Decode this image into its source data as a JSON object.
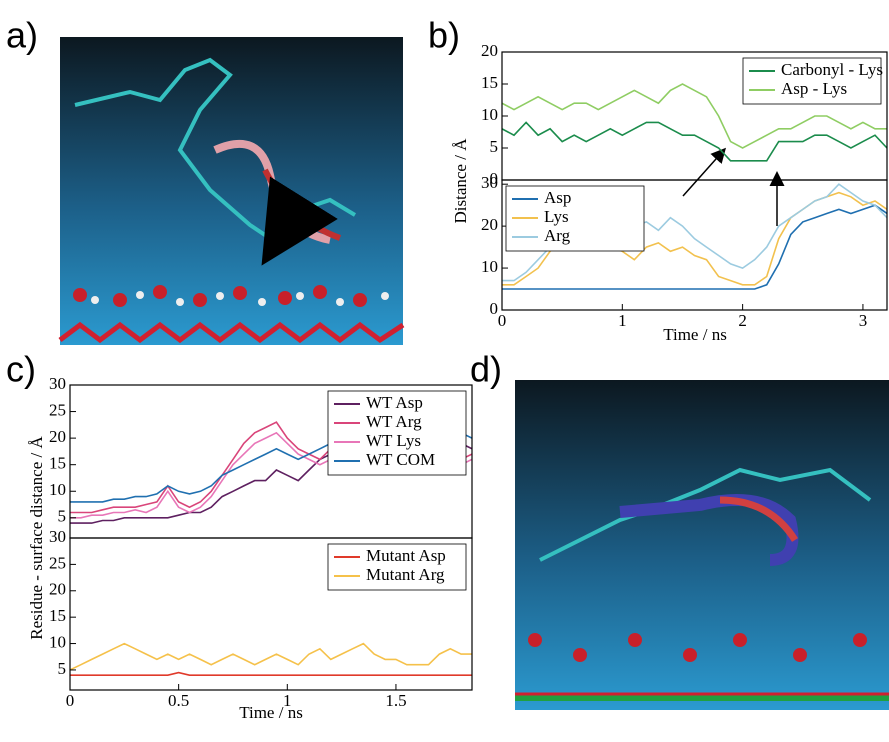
{
  "panels": {
    "labels": [
      "a)",
      "b)",
      "c)",
      "d)"
    ]
  },
  "chart_data": [
    {
      "type": "line",
      "legend": "upper right",
      "ylabel": "Distance / Å",
      "xlim": [
        0,
        3.2
      ],
      "ylim": [
        0,
        20
      ],
      "yticks": [
        0,
        5,
        10,
        15,
        20
      ],
      "x": [
        0,
        0.1,
        0.2,
        0.3,
        0.4,
        0.5,
        0.6,
        0.7,
        0.8,
        0.9,
        1,
        1.1,
        1.2,
        1.3,
        1.4,
        1.5,
        1.6,
        1.7,
        1.8,
        1.9,
        2,
        2.1,
        2.2,
        2.3,
        2.4,
        2.5,
        2.6,
        2.7,
        2.8,
        2.9,
        3,
        3.1,
        3.2
      ],
      "series": [
        {
          "name": "Carbonyl - Lys",
          "color": "#1b8c4c",
          "values": [
            8,
            7,
            9,
            7,
            8,
            6,
            7,
            6,
            7,
            8,
            7,
            8,
            9,
            9,
            8,
            7,
            7,
            6,
            5,
            3,
            3,
            3,
            3,
            6,
            6,
            6,
            7,
            7,
            6,
            5,
            6,
            7,
            5
          ]
        },
        {
          "name": "Asp - Lys",
          "color": "#8fcd63",
          "values": [
            12,
            11,
            12,
            13,
            12,
            11,
            12,
            12,
            11,
            12,
            13,
            14,
            13,
            12,
            14,
            15,
            14,
            13,
            10,
            6,
            5,
            6,
            7,
            8,
            8,
            9,
            10,
            10,
            9,
            8,
            9,
            8,
            8
          ]
        }
      ]
    },
    {
      "type": "line",
      "legend": "upper left",
      "xlabel": "Time / ns",
      "xlim": [
        0,
        3.2
      ],
      "xticks": [
        0,
        1,
        2,
        3
      ],
      "ylim": [
        0,
        31
      ],
      "yticks": [
        0,
        10,
        20,
        30
      ],
      "x": [
        0,
        0.1,
        0.2,
        0.3,
        0.4,
        0.5,
        0.6,
        0.7,
        0.8,
        0.9,
        1,
        1.1,
        1.2,
        1.3,
        1.4,
        1.5,
        1.6,
        1.7,
        1.8,
        1.9,
        2,
        2.1,
        2.2,
        2.3,
        2.4,
        2.5,
        2.6,
        2.7,
        2.8,
        2.9,
        3,
        3.1,
        3.2
      ],
      "series": [
        {
          "name": "Asp",
          "color": "#1f6fb0",
          "values": [
            5,
            5,
            5,
            5,
            5,
            5,
            5,
            5,
            5,
            5,
            5,
            5,
            5,
            5,
            5,
            5,
            5,
            5,
            5,
            5,
            5,
            5,
            6,
            11,
            18,
            21,
            22,
            23,
            24,
            23,
            24,
            25,
            23
          ]
        },
        {
          "name": "Lys",
          "color": "#f2c14e",
          "values": [
            6,
            6,
            8,
            10,
            14,
            17,
            16,
            15,
            16,
            15,
            14,
            12,
            15,
            16,
            14,
            15,
            13,
            12,
            8,
            7,
            6,
            6,
            8,
            17,
            22,
            24,
            26,
            27,
            28,
            27,
            25,
            26,
            24
          ]
        },
        {
          "name": "Arg",
          "color": "#9ccbe0",
          "values": [
            7,
            7,
            9,
            12,
            15,
            16,
            17,
            20,
            22,
            21,
            19,
            20,
            21,
            19,
            22,
            20,
            17,
            15,
            13,
            11,
            10,
            12,
            15,
            20,
            22,
            24,
            26,
            27,
            30,
            28,
            26,
            25,
            22
          ]
        }
      ]
    },
    {
      "type": "line",
      "legend": "upper right",
      "ylabel": "Residue - surface distance / Å",
      "xlim": [
        0,
        1.85
      ],
      "ylim": [
        1.2,
        30
      ],
      "yticks": [
        5,
        10,
        15,
        20,
        25,
        30
      ],
      "x": [
        0,
        0.05,
        0.1,
        0.15,
        0.2,
        0.25,
        0.3,
        0.35,
        0.4,
        0.45,
        0.5,
        0.55,
        0.6,
        0.65,
        0.7,
        0.75,
        0.8,
        0.85,
        0.9,
        0.95,
        1,
        1.05,
        1.1,
        1.15,
        1.2,
        1.25,
        1.3,
        1.35,
        1.4,
        1.45,
        1.5,
        1.55,
        1.6,
        1.65,
        1.7,
        1.75,
        1.8,
        1.85
      ],
      "series": [
        {
          "name": "WT Asp",
          "color": "#5e2060",
          "values": [
            4,
            4,
            4,
            4.5,
            4.5,
            5,
            5,
            5,
            5,
            5,
            5.5,
            6,
            6,
            7,
            9,
            10,
            11,
            12,
            12,
            14,
            13,
            12,
            14,
            16,
            17,
            19,
            20,
            21,
            22,
            20,
            18,
            19,
            18,
            19,
            19,
            20,
            19,
            18
          ]
        },
        {
          "name": "WT Arg",
          "color": "#d9457a",
          "values": [
            6,
            6,
            6,
            6.5,
            7,
            7,
            7,
            7.5,
            8,
            11,
            8,
            7,
            8,
            10,
            13,
            16,
            19,
            21,
            22,
            23,
            20,
            18,
            17,
            16,
            18,
            19,
            20,
            21,
            21,
            19,
            18,
            18,
            17,
            18,
            18,
            17,
            16,
            17
          ]
        },
        {
          "name": "WT Lys",
          "color": "#e876b8",
          "values": [
            5,
            5,
            5.5,
            5.5,
            6,
            6,
            6.5,
            6,
            7,
            10,
            7,
            6,
            7,
            9,
            12,
            15,
            17,
            19,
            20,
            21,
            19,
            17,
            16,
            15,
            16,
            17,
            18,
            19,
            20,
            20,
            19,
            18,
            17,
            16,
            17,
            16,
            15,
            16
          ]
        },
        {
          "name": "WT COM",
          "color": "#2070b0",
          "values": [
            8,
            8,
            8,
            8,
            8.5,
            8.5,
            9,
            9,
            9.5,
            11,
            10,
            9.5,
            10,
            11,
            13,
            14,
            15,
            16,
            17,
            18,
            17,
            16,
            17,
            18,
            19,
            20,
            21,
            22,
            22,
            24,
            22,
            21,
            20,
            20,
            21,
            22,
            21,
            20
          ]
        }
      ]
    },
    {
      "type": "line",
      "legend": "upper right",
      "xlabel": "Time / ns",
      "xlim": [
        0,
        1.85
      ],
      "xticks": [
        0,
        0.5,
        1,
        1.5
      ],
      "ylim": [
        1.2,
        30
      ],
      "yticks": [
        5,
        10,
        15,
        20,
        25,
        30
      ],
      "x": [
        0,
        0.05,
        0.1,
        0.15,
        0.2,
        0.25,
        0.3,
        0.35,
        0.4,
        0.45,
        0.5,
        0.55,
        0.6,
        0.65,
        0.7,
        0.75,
        0.8,
        0.85,
        0.9,
        0.95,
        1,
        1.05,
        1.1,
        1.15,
        1.2,
        1.25,
        1.3,
        1.35,
        1.4,
        1.45,
        1.5,
        1.55,
        1.6,
        1.65,
        1.7,
        1.75,
        1.8,
        1.85
      ],
      "series": [
        {
          "name": "Mutant Asp",
          "color": "#e03a2a",
          "values": [
            4,
            4,
            4,
            4,
            4,
            4,
            4,
            4,
            4,
            4,
            4.5,
            4,
            4,
            4,
            4,
            4,
            4,
            4,
            4,
            4,
            4,
            4,
            4,
            4,
            4,
            4,
            4,
            4,
            4,
            4,
            4,
            4,
            4,
            4,
            4,
            4,
            4,
            4
          ]
        },
        {
          "name": "Mutant Arg",
          "color": "#f5c14a",
          "values": [
            5,
            6,
            7,
            8,
            9,
            10,
            9,
            8,
            7,
            8,
            7,
            8,
            7,
            6,
            7,
            8,
            7,
            6,
            7,
            8,
            7,
            6,
            8,
            9,
            7,
            8,
            9,
            10,
            8,
            7,
            7,
            6,
            6,
            6,
            8,
            9,
            8,
            8
          ]
        }
      ]
    }
  ]
}
